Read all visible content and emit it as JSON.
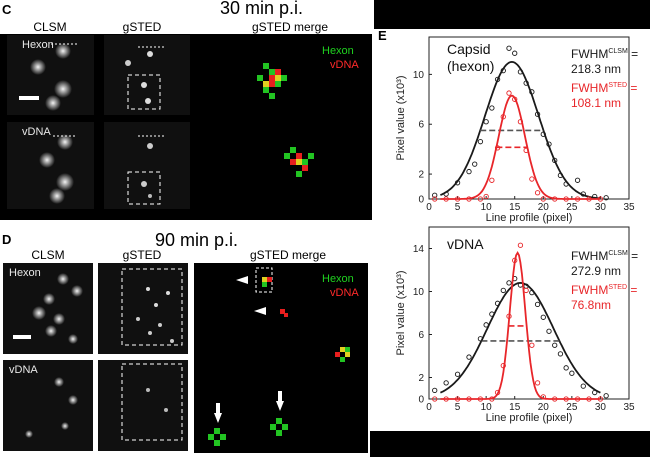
{
  "panel_c": {
    "letter": "C",
    "title": "30 min p.i.",
    "col_clsm": "CLSM",
    "col_gsted": "gSTED",
    "col_merge": "gSTED merge",
    "row1_label": "Hexon",
    "row2_label": "vDNA",
    "merge_green": "Hexon",
    "merge_red": "vDNA"
  },
  "panel_d": {
    "letter": "D",
    "title": "90 min p.i.",
    "col_clsm": "CLSM",
    "col_gsted": "gSTED",
    "col_merge": "gSTED merge",
    "row1_label": "Hexon",
    "row2_label": "vDNA",
    "merge_green": "Hexon",
    "merge_red": "vDNA"
  },
  "panel_e": {
    "letter": "E",
    "ylabel": "Pixel value (x10³)",
    "xlabel": "Line profile (pixel)",
    "top": {
      "title_line1": "Capsid",
      "title_line2": "(hexon)",
      "clsm_label": "FWHM",
      "clsm_sup": "CLSM",
      "clsm_suffix": " =",
      "clsm_value": "218.3 nm",
      "sted_label": "FWHM",
      "sted_sup": "STED",
      "sted_suffix": " =",
      "sted_value": "108.1 nm"
    },
    "bottom": {
      "title_line1": "vDNA",
      "clsm_label": "FWHM",
      "clsm_sup": "CLSM",
      "clsm_suffix": " =",
      "clsm_value": "272.9 nm",
      "sted_label": "FWHM",
      "sted_sup": "STED",
      "sted_suffix": " =",
      "sted_value": "76.8nm"
    },
    "colors": {
      "clsm": "#1a1a1a",
      "sted": "#e8262a"
    }
  },
  "chart_data": [
    {
      "type": "line",
      "xlabel": "Line profile (pixel)",
      "ylabel": "Pixel value (x10³)",
      "xlim": [
        0,
        35
      ],
      "ylim": [
        0,
        13
      ],
      "xticks": [
        "0",
        "5",
        "10",
        "15",
        "20",
        "25",
        "30",
        "35"
      ],
      "yticks": [
        "0",
        "2",
        "6",
        "10"
      ],
      "series": [
        {
          "name": "FWHM CLSM",
          "color": "#1a1a1a",
          "amp": 11,
          "mu": 14.5,
          "sigma": 4.7,
          "points": [
            [
              1,
              0.3
            ],
            [
              3,
              0.4
            ],
            [
              5,
              1.3
            ],
            [
              7,
              2.2
            ],
            [
              8,
              2.8
            ],
            [
              9,
              4.6
            ],
            [
              10,
              6.2
            ],
            [
              11,
              7.3
            ],
            [
              12,
              9.6
            ],
            [
              13,
              10.3
            ],
            [
              14,
              12.1
            ],
            [
              15,
              11.7
            ],
            [
              16,
              10.2
            ],
            [
              17,
              9.3
            ],
            [
              18,
              8.6
            ],
            [
              19,
              6.8
            ],
            [
              20,
              5.2
            ],
            [
              21,
              4.4
            ],
            [
              22,
              3.1
            ],
            [
              23,
              1.9
            ],
            [
              24,
              1.2
            ],
            [
              26,
              1.5
            ],
            [
              27,
              0.4
            ],
            [
              29,
              0.2
            ],
            [
              31,
              0.1
            ]
          ]
        },
        {
          "name": "FWHM STED",
          "color": "#e8262a",
          "amp": 8.3,
          "mu": 14.5,
          "sigma": 2.3,
          "points": [
            [
              1,
              0
            ],
            [
              3,
              0
            ],
            [
              5,
              0
            ],
            [
              7,
              0
            ],
            [
              9,
              0
            ],
            [
              10,
              0.2
            ],
            [
              11,
              1.5
            ],
            [
              12,
              4.1
            ],
            [
              13,
              6.6
            ],
            [
              14,
              8.5
            ],
            [
              15,
              8.0
            ],
            [
              16,
              6.2
            ],
            [
              17,
              3.9
            ],
            [
              18,
              1.6
            ],
            [
              19,
              0.5
            ],
            [
              20,
              0
            ],
            [
              22,
              0
            ],
            [
              24,
              0
            ],
            [
              26,
              0
            ],
            [
              28,
              0
            ],
            [
              30,
              0
            ]
          ]
        }
      ]
    },
    {
      "type": "line",
      "xlabel": "Line profile (pixel)",
      "ylabel": "Pixel value (x10³)",
      "xlim": [
        0,
        35
      ],
      "ylim": [
        0,
        16
      ],
      "xticks": [
        "0",
        "5",
        "10",
        "15",
        "20",
        "25",
        "30",
        "35"
      ],
      "yticks": [
        "0",
        "2",
        "6",
        "10",
        "14"
      ],
      "series": [
        {
          "name": "FWHM CLSM",
          "color": "#1a1a1a",
          "amp": 10.8,
          "mu": 16,
          "sigma": 5.8,
          "points": [
            [
              1,
              0.8
            ],
            [
              3,
              1.5
            ],
            [
              5,
              2.3
            ],
            [
              7,
              3.9
            ],
            [
              9,
              5.6
            ],
            [
              10,
              6.9
            ],
            [
              11,
              7.9
            ],
            [
              12,
              8.9
            ],
            [
              13,
              10.1
            ],
            [
              14,
              10.8
            ],
            [
              15,
              11.2
            ],
            [
              16,
              10.6
            ],
            [
              17,
              10.5
            ],
            [
              18,
              9.9
            ],
            [
              19,
              8.8
            ],
            [
              20,
              7.6
            ],
            [
              21,
              6.3
            ],
            [
              22,
              5.0
            ],
            [
              23,
              4.2
            ],
            [
              24,
              2.9
            ],
            [
              25,
              2.4
            ],
            [
              27,
              1.2
            ],
            [
              29,
              0.6
            ],
            [
              31,
              0.3
            ]
          ]
        },
        {
          "name": "FWHM STED",
          "color": "#e8262a",
          "amp": 13.6,
          "mu": 15.5,
          "sigma": 1.35,
          "points": [
            [
              1,
              0
            ],
            [
              3,
              0
            ],
            [
              5,
              0
            ],
            [
              7,
              0
            ],
            [
              9,
              0
            ],
            [
              11,
              0
            ],
            [
              12,
              0.6
            ],
            [
              13,
              3.1
            ],
            [
              14,
              7.7
            ],
            [
              15,
              12.9
            ],
            [
              16,
              14.3
            ],
            [
              17,
              10.1
            ],
            [
              18,
              5.0
            ],
            [
              19,
              1.5
            ],
            [
              20,
              0.2
            ],
            [
              22,
              0
            ],
            [
              24,
              0
            ],
            [
              26,
              0
            ],
            [
              28,
              0
            ],
            [
              30,
              0
            ]
          ]
        }
      ]
    }
  ]
}
